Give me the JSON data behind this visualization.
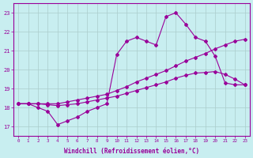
{
  "xlabel": "Windchill (Refroidissement éolien,°C)",
  "ylabel": "",
  "bg_color": "#c8eef0",
  "line_color": "#990099",
  "grid_color": "#aacccc",
  "ylim": [
    16.5,
    23.5
  ],
  "xlim": [
    -0.5,
    23.5
  ],
  "yticks": [
    17,
    18,
    19,
    20,
    21,
    22,
    23
  ],
  "xticks": [
    0,
    1,
    2,
    3,
    4,
    5,
    6,
    7,
    8,
    9,
    10,
    11,
    12,
    13,
    14,
    15,
    16,
    17,
    18,
    19,
    20,
    21,
    22,
    23
  ],
  "line1_x": [
    0,
    1,
    2,
    3,
    4,
    5,
    6,
    7,
    8,
    9,
    10,
    11,
    12,
    13,
    14,
    15,
    16,
    17,
    18,
    19,
    20,
    21,
    22,
    23
  ],
  "line1_y": [
    18.2,
    18.2,
    18.0,
    17.8,
    17.1,
    17.3,
    17.5,
    17.8,
    18.0,
    18.2,
    20.8,
    21.5,
    21.7,
    21.5,
    21.3,
    22.8,
    23.0,
    22.4,
    21.7,
    21.5,
    20.7,
    19.3,
    19.2,
    19.2
  ],
  "line2_x": [
    0,
    1,
    2,
    3,
    4,
    5,
    6,
    7,
    8,
    9,
    10,
    11,
    12,
    13,
    14,
    15,
    16,
    17,
    18,
    19,
    20,
    21,
    22,
    23
  ],
  "line2_y": [
    18.2,
    18.2,
    18.2,
    18.2,
    18.2,
    18.3,
    18.4,
    18.5,
    18.6,
    18.7,
    18.9,
    19.1,
    19.35,
    19.55,
    19.75,
    19.95,
    20.2,
    20.45,
    20.65,
    20.85,
    21.1,
    21.3,
    21.5,
    21.6
  ],
  "line3_x": [
    0,
    1,
    2,
    3,
    4,
    5,
    6,
    7,
    8,
    9,
    10,
    11,
    12,
    13,
    14,
    15,
    16,
    17,
    18,
    19,
    20,
    21,
    22,
    23
  ],
  "line3_y": [
    18.2,
    18.2,
    18.2,
    18.15,
    18.1,
    18.15,
    18.2,
    18.3,
    18.4,
    18.5,
    18.6,
    18.75,
    18.9,
    19.05,
    19.2,
    19.35,
    19.55,
    19.7,
    19.82,
    19.85,
    19.9,
    19.75,
    19.5,
    19.2
  ]
}
